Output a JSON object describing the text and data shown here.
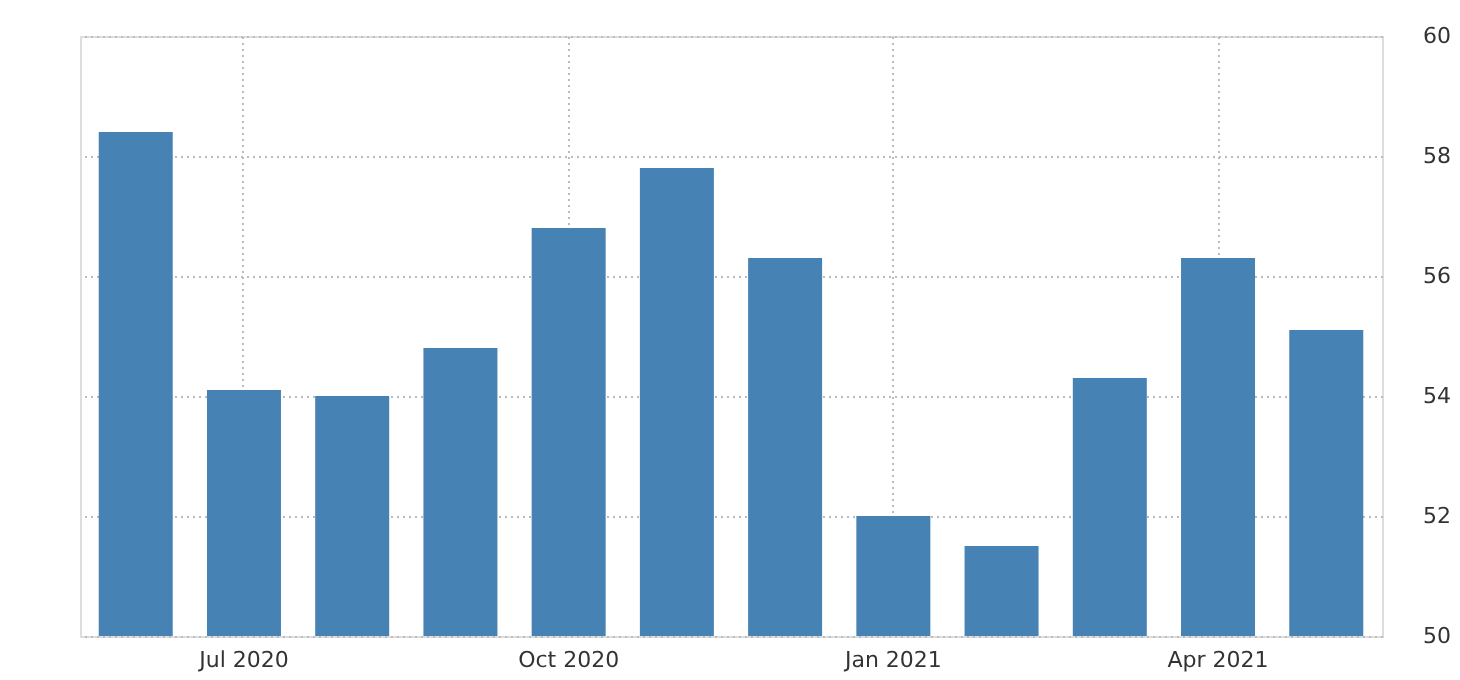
{
  "chart_data": {
    "type": "bar",
    "categories": [
      null,
      "Jul 2020",
      null,
      null,
      "Oct 2020",
      null,
      null,
      "Jan 2021",
      null,
      null,
      "Apr 2021",
      null
    ],
    "values": [
      58.4,
      54.1,
      54.0,
      54.8,
      56.8,
      57.8,
      56.3,
      52.0,
      51.5,
      54.3,
      56.3,
      55.1
    ],
    "color": "#4682b4",
    "ylim": [
      50,
      60
    ],
    "yticks": [
      50,
      52,
      54,
      56,
      58,
      60
    ],
    "grid": true
  }
}
